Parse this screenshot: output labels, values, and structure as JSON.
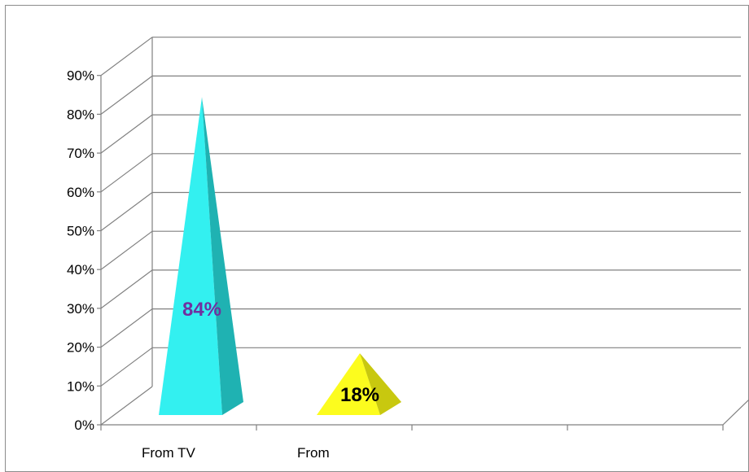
{
  "chart_data": {
    "type": "bar",
    "style": "3d-pyramid",
    "categories": [
      "From TV",
      "From"
    ],
    "values": [
      0.84,
      0.18
    ],
    "data_labels": [
      "84%",
      "18%"
    ],
    "ylim": [
      0,
      0.9
    ],
    "yticks": [
      "0%",
      "10%",
      "20%",
      "30%",
      "40%",
      "50%",
      "60%",
      "70%",
      "80%",
      "90%"
    ],
    "grid": true,
    "legend": "none",
    "colors": {
      "bar_front": [
        "#33f0f0",
        "#fcfc1e"
      ],
      "bar_side": [
        "#1fb2b2",
        "#c8c80f"
      ],
      "label": [
        "#7030a0",
        "#000000"
      ],
      "grid": "#808080"
    }
  }
}
